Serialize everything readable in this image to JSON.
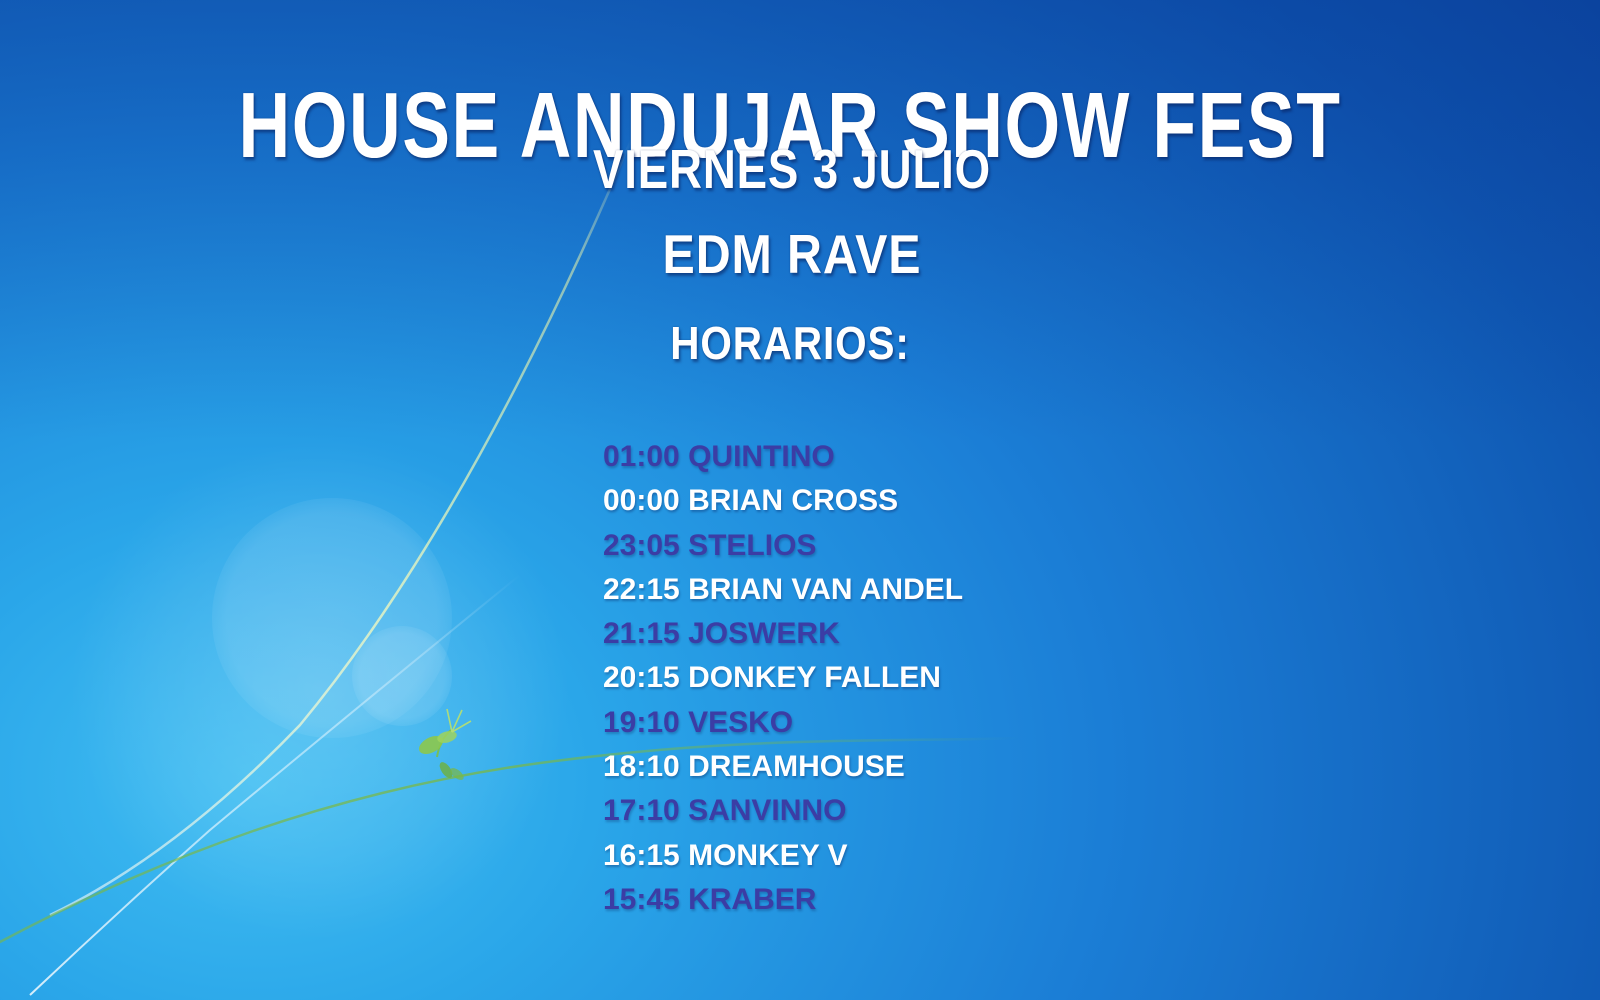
{
  "poster": {
    "title": "HOUSE ANDUJAR SHOW FEST",
    "date": "VIERNES 3 JULIO",
    "genre": "EDM RAVE",
    "schedule_heading": "HORARIOS:",
    "schedule": [
      {
        "time": "01:00",
        "artist": "QUINTINO",
        "tone": "indigo"
      },
      {
        "time": "00:00",
        "artist": "BRIAN CROSS",
        "tone": "white"
      },
      {
        "time": "23:05",
        "artist": "STELIOS",
        "tone": "indigo"
      },
      {
        "time": "22:15",
        "artist": "BRIAN VAN ANDEL",
        "tone": "white"
      },
      {
        "time": "21:15",
        "artist": "JOSWERK",
        "tone": "indigo"
      },
      {
        "time": "20:15",
        "artist": "DONKEY FALLEN",
        "tone": "white"
      },
      {
        "time": "19:10",
        "artist": "VESKO",
        "tone": "indigo"
      },
      {
        "time": "18:10",
        "artist": "DREAMHOUSE",
        "tone": "white"
      },
      {
        "time": "17:10",
        "artist": "SANVINNO",
        "tone": "indigo"
      },
      {
        "time": "16:15",
        "artist": "MONKEY V",
        "tone": "white"
      },
      {
        "time": "15:45",
        "artist": "KRABER",
        "tone": "indigo"
      }
    ],
    "colors": {
      "indigo_text": "#3b3da5",
      "white_text": "#ffffff",
      "wallpaper_deep_blue": "#0d4aa3",
      "wallpaper_bright_cyan": "#2fb3f0",
      "sprout_green": "#8cc84b"
    }
  }
}
